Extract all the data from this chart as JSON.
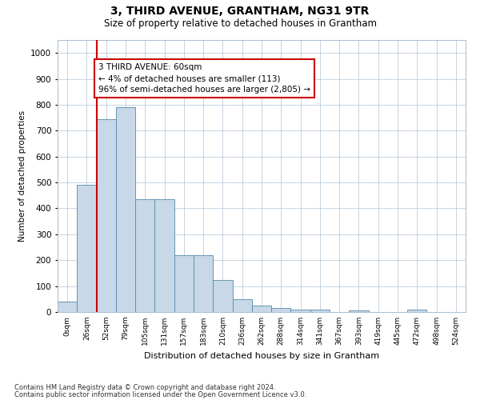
{
  "title": "3, THIRD AVENUE, GRANTHAM, NG31 9TR",
  "subtitle": "Size of property relative to detached houses in Grantham",
  "xlabel": "Distribution of detached houses by size in Grantham",
  "ylabel": "Number of detached properties",
  "bar_color": "#c8d8e8",
  "bar_edge_color": "#5588aa",
  "grid_color": "#b0c4d8",
  "background_color": "#ffffff",
  "categories": [
    "0sqm",
    "26sqm",
    "52sqm",
    "79sqm",
    "105sqm",
    "131sqm",
    "157sqm",
    "183sqm",
    "210sqm",
    "236sqm",
    "262sqm",
    "288sqm",
    "314sqm",
    "341sqm",
    "367sqm",
    "393sqm",
    "419sqm",
    "445sqm",
    "472sqm",
    "498sqm",
    "524sqm"
  ],
  "values": [
    40,
    490,
    745,
    790,
    435,
    435,
    220,
    220,
    125,
    50,
    25,
    15,
    10,
    10,
    0,
    5,
    0,
    0,
    10,
    0,
    0
  ],
  "ylim": [
    0,
    1050
  ],
  "yticks": [
    0,
    100,
    200,
    300,
    400,
    500,
    600,
    700,
    800,
    900,
    1000
  ],
  "vline_x": 1.5,
  "annotation_text": "3 THIRD AVENUE: 60sqm\n← 4% of detached houses are smaller (113)\n96% of semi-detached houses are larger (2,805) →",
  "annotation_box_color": "#ffffff",
  "annotation_box_edgecolor": "#cc0000",
  "vline_color": "#cc0000",
  "footnote1": "Contains HM Land Registry data © Crown copyright and database right 2024.",
  "footnote2": "Contains public sector information licensed under the Open Government Licence v3.0."
}
